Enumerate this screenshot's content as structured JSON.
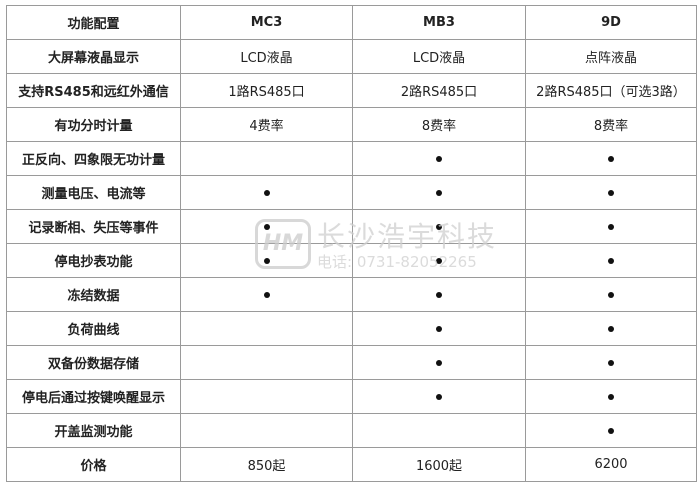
{
  "header": [
    "功能配置",
    "MC3",
    "MB3",
    "9D"
  ],
  "rows": [
    {
      "feature": "大屏幕液晶显示",
      "values": [
        "LCD液晶",
        "LCD液晶",
        "点阵液晶"
      ]
    },
    {
      "feature": "支持RS485和远红外通信",
      "values": [
        "1路RS485口",
        "2路RS485口",
        "2路RS485口（可选3路）"
      ]
    },
    {
      "feature": "有功分时计量",
      "values": [
        "4费率",
        "8费率",
        "8费率"
      ]
    },
    {
      "feature": "正反向、四象限无功计量",
      "values": [
        false,
        true,
        true
      ]
    },
    {
      "feature": "测量电压、电流等",
      "values": [
        true,
        true,
        true
      ]
    },
    {
      "feature": "记录断相、失压等事件",
      "values": [
        true,
        true,
        true
      ]
    },
    {
      "feature": "停电抄表功能",
      "values": [
        true,
        true,
        true
      ]
    },
    {
      "feature": "冻结数据",
      "values": [
        true,
        true,
        true
      ]
    },
    {
      "feature": "负荷曲线",
      "values": [
        false,
        true,
        true
      ]
    },
    {
      "feature": "双备份数据存储",
      "values": [
        false,
        true,
        true
      ]
    },
    {
      "feature": "停电后通过按键唤醒显示",
      "values": [
        false,
        true,
        true
      ]
    },
    {
      "feature": "开盖监测功能",
      "values": [
        false,
        false,
        true
      ]
    },
    {
      "feature": "价格",
      "values": [
        "850起",
        "1600起",
        "6200"
      ]
    }
  ],
  "watermark": {
    "logo": "HM",
    "name": "长沙浩宇科技",
    "tel": "电话: 0731-82052265"
  }
}
